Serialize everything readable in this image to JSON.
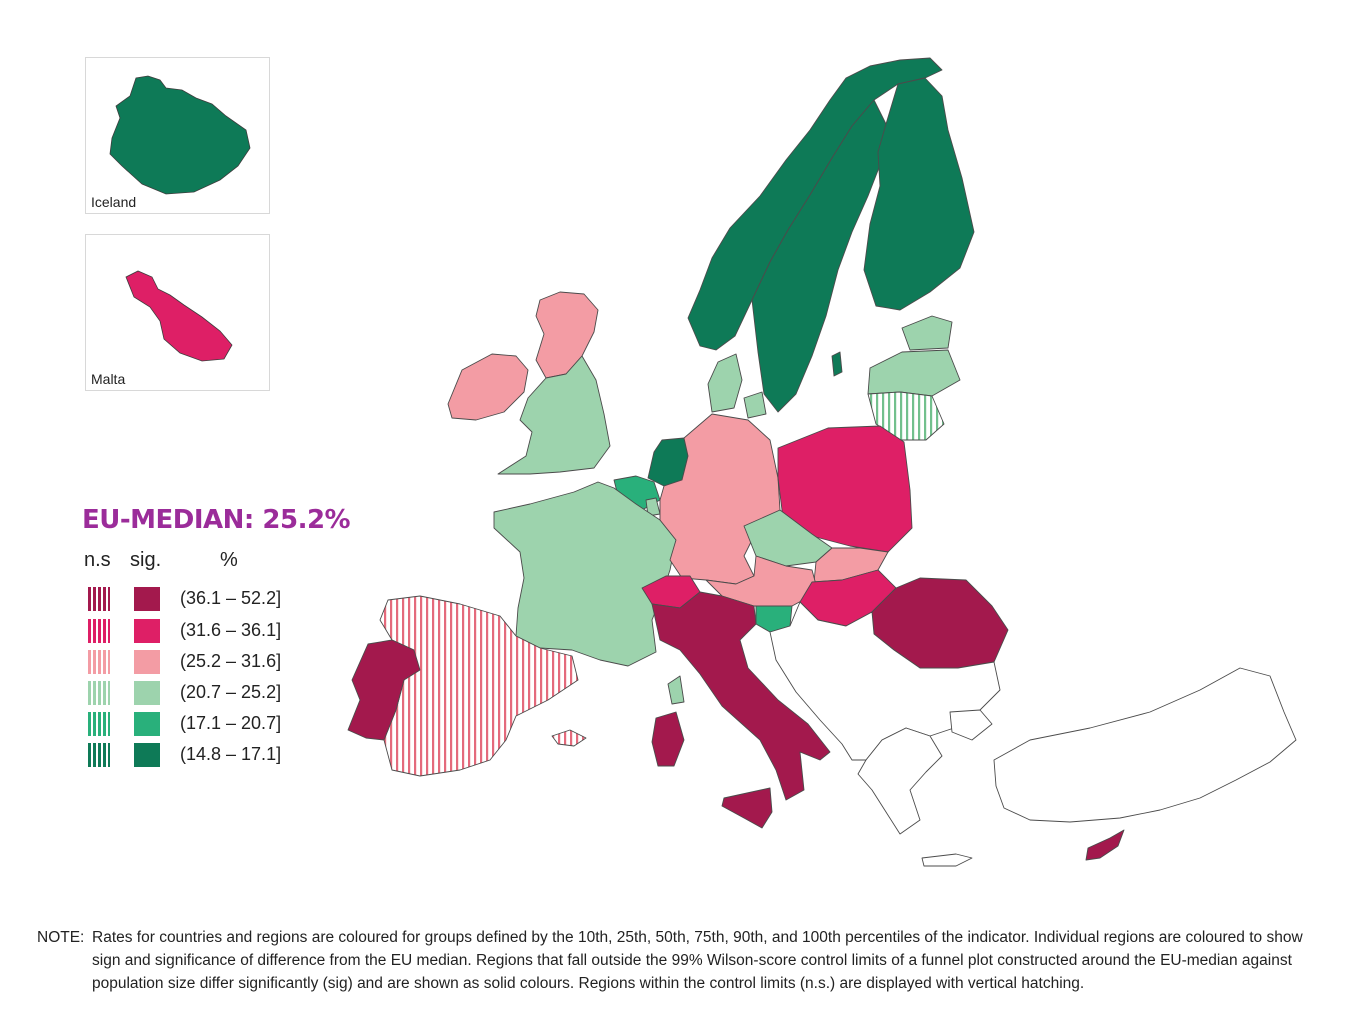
{
  "insets": [
    {
      "label": "Iceland",
      "color": "#0e7a57"
    },
    {
      "label": "Malta",
      "color": "#de1f66"
    }
  ],
  "legend": {
    "median_label": "EU-MEDIAN: 25.2%",
    "col_ns": "n.s",
    "col_sig": "sig.",
    "col_pct": "%",
    "classes": [
      {
        "range": "(36.1 – 52.2]",
        "color": "#a3194d"
      },
      {
        "range": "(31.6 – 36.1]",
        "color": "#de1f66"
      },
      {
        "range": "(25.2 – 31.6]",
        "color": "#f39ca4"
      },
      {
        "range": "(20.7 – 25.2]",
        "color": "#9dd3ad"
      },
      {
        "range": "(17.1 – 20.7]",
        "color": "#29b07b"
      },
      {
        "range": "(14.8 – 17.1]",
        "color": "#0e7a57"
      }
    ]
  },
  "note": {
    "label": "NOTE:",
    "text": "Rates for countries and regions are coloured for groups defined by the 10th, 25th, 50th, 75th, 90th, and 100th percentiles of the indicator. Individual regions are coloured to show sign and significance of difference from the EU median. Regions that fall outside the 99% Wilson-score control limits of a funnel plot constructed around the EU-median against population size differ significantly (sig) and are shown as solid colours. Regions within the control limits (n.s.) are displayed with vertical hatching."
  }
}
